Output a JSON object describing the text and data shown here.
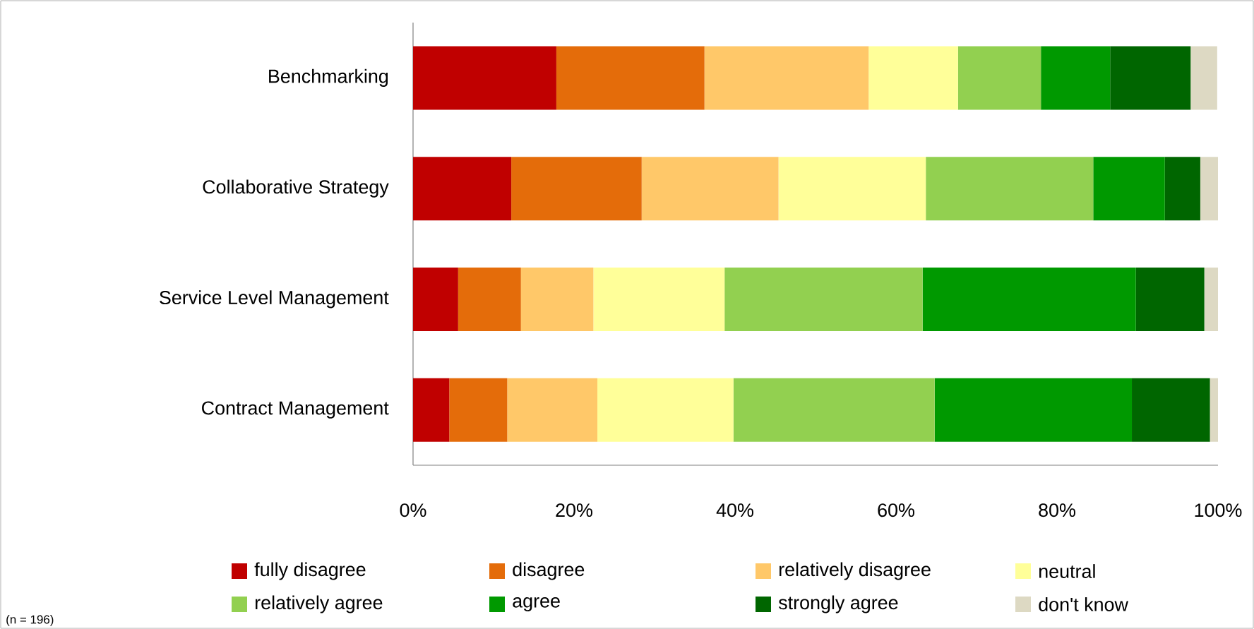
{
  "chart_data": {
    "type": "bar",
    "orientation": "horizontal",
    "stacked": true,
    "legend": "bottom",
    "grid": false,
    "categories": [
      "Benchmarking",
      "Collaborative Strategy",
      "Service Level Management",
      "Contract Management"
    ],
    "xlim": [
      0,
      100
    ],
    "xticks": [
      {
        "value": 0,
        "label": "0%"
      },
      {
        "value": 20,
        "label": "20%"
      },
      {
        "value": 40,
        "label": "40%"
      },
      {
        "value": 60,
        "label": "60%"
      },
      {
        "value": 80,
        "label": "80%"
      },
      {
        "value": 100,
        "label": "100%"
      }
    ],
    "series": [
      {
        "name": "fully disagree",
        "color": "#c00000",
        "values": [
          17.8,
          12.2,
          5.6,
          4.5
        ]
      },
      {
        "name": "disagree",
        "color": "#e46c0a",
        "values": [
          18.4,
          16.2,
          7.8,
          7.2
        ]
      },
      {
        "name": "relatively disagree",
        "color": "#ffc869",
        "values": [
          20.4,
          17.0,
          9.0,
          11.2
        ]
      },
      {
        "name": "neutral",
        "color": "#ffff99",
        "values": [
          11.1,
          18.3,
          16.3,
          16.9
        ]
      },
      {
        "name": "relatively agree",
        "color": "#92d050",
        "values": [
          10.3,
          20.8,
          24.6,
          25.0
        ]
      },
      {
        "name": "agree",
        "color": "#009900",
        "values": [
          8.6,
          8.9,
          26.5,
          24.5
        ]
      },
      {
        "name": "strongly agree",
        "color": "#006600",
        "values": [
          10.0,
          4.4,
          8.5,
          9.7
        ]
      },
      {
        "name": "don't know",
        "color": "#ddd9c3",
        "values": [
          3.3,
          2.2,
          1.7,
          1.1
        ]
      }
    ],
    "annotations": [
      "(n = 196)"
    ]
  }
}
